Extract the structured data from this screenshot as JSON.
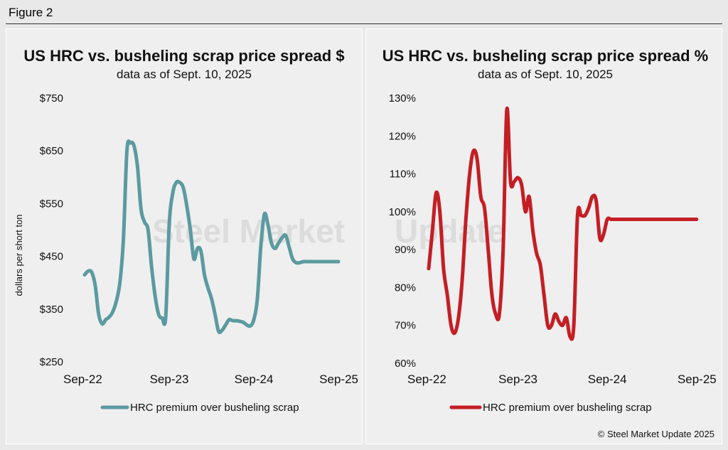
{
  "figure_label": "Figure 2",
  "copyright": "© Steel Market Update 2025",
  "colors": {
    "left_series": "#5b9aa0",
    "right_series": "#c41e24",
    "background": "#e9e9e9"
  },
  "chart_data": [
    {
      "type": "line",
      "title": "US HRC vs. busheling scrap price spread $",
      "subtitle": "data as of Sept. 10, 2025",
      "ylabel": "dollars per short ton",
      "xlabel": "",
      "ylim": [
        250,
        750
      ],
      "y_ticks": [
        250,
        350,
        450,
        550,
        650,
        750
      ],
      "y_tick_labels": [
        "$250",
        "$350",
        "$450",
        "$550",
        "$650",
        "$750"
      ],
      "x_tick_labels": [
        "Sep-22",
        "Sep-23",
        "Sep-24",
        "Sep-25"
      ],
      "x_ticks_months": [
        0,
        12,
        24,
        36
      ],
      "xlim_months": [
        0,
        36.5
      ],
      "legend": "bottom-center",
      "grid": false,
      "series": [
        {
          "name": "HRC premium over busheling scrap",
          "x_months": [
            0,
            0.5,
            1,
            1.5,
            2,
            2.5,
            3,
            3.5,
            4,
            4.5,
            5,
            5.5,
            6,
            6.5,
            7,
            7.5,
            8,
            8.5,
            9,
            9.5,
            10,
            10.5,
            11,
            11.5,
            12,
            12.5,
            13,
            13.5,
            14,
            14.5,
            15,
            15.5,
            16,
            16.5,
            17,
            17.5,
            18,
            18.5,
            19,
            19.5,
            20,
            20.5,
            21,
            21.5,
            22,
            22.5,
            23,
            23.5,
            24,
            24.5,
            25,
            25.5,
            26,
            26.5,
            27,
            27.5,
            28,
            28.5,
            29,
            29.5,
            30,
            30.5,
            31,
            31.5,
            32,
            32.5,
            33,
            33.5,
            34,
            34.5,
            35,
            35.5,
            36
          ],
          "values": [
            415,
            422,
            420,
            395,
            340,
            322,
            330,
            335,
            345,
            365,
            400,
            480,
            650,
            665,
            660,
            620,
            540,
            515,
            500,
            430,
            375,
            340,
            333,
            335,
            510,
            570,
            590,
            590,
            580,
            545,
            500,
            445,
            465,
            460,
            415,
            390,
            370,
            340,
            308,
            310,
            320,
            330,
            328,
            328,
            327,
            325,
            320,
            318,
            330,
            370,
            470,
            530,
            510,
            475,
            465,
            475,
            485,
            490,
            468,
            445,
            438,
            438,
            440,
            440,
            440,
            440,
            440,
            440,
            440,
            440,
            440,
            440,
            440
          ]
        }
      ]
    },
    {
      "type": "line",
      "title": "US HRC vs. busheling scrap price spread %",
      "subtitle": "data as of Sept. 10, 2025",
      "ylabel": "",
      "xlabel": "",
      "ylim": [
        60,
        130
      ],
      "y_ticks": [
        60,
        70,
        80,
        90,
        100,
        110,
        120,
        130
      ],
      "y_tick_labels": [
        "60%",
        "70%",
        "80%",
        "90%",
        "100%",
        "110%",
        "120%",
        "130%"
      ],
      "x_tick_labels": [
        "Sep-22",
        "Sep-23",
        "Sep-24",
        "Sep-25"
      ],
      "x_ticks_months": [
        0,
        12,
        24,
        36
      ],
      "xlim_months": [
        0,
        36.5
      ],
      "legend": "bottom-center",
      "grid": false,
      "series": [
        {
          "name": "HRC premium over busheling scrap",
          "x_months": [
            0,
            0.5,
            1,
            1.5,
            2,
            2.5,
            3,
            3.5,
            4,
            4.5,
            5,
            5.5,
            6,
            6.5,
            7,
            7.5,
            8,
            8.5,
            9,
            9.5,
            10,
            10.5,
            11,
            11.5,
            12,
            12.5,
            13,
            13.5,
            14,
            14.5,
            15,
            15.5,
            16,
            16.5,
            17,
            17.5,
            18,
            18.5,
            19,
            19.5,
            20,
            20.5,
            21,
            21.5,
            22,
            22.5,
            23,
            23.5,
            24,
            24.5,
            25,
            25.5,
            26,
            26.5,
            27,
            27.5,
            28,
            28.5,
            29,
            29.5,
            30,
            30.5,
            31,
            31.5,
            32,
            32.5,
            33,
            33.5,
            34,
            34.5,
            35,
            35.5,
            36
          ],
          "values": [
            85,
            95,
            105,
            100,
            85,
            78,
            70,
            68,
            72,
            82,
            98,
            110,
            116,
            114,
            104,
            101,
            90,
            78,
            73,
            73,
            90,
            127,
            108,
            108,
            109,
            107,
            100,
            104,
            95,
            89,
            86,
            78,
            70,
            70,
            73,
            71,
            70,
            72,
            67,
            70,
            99,
            99,
            99,
            101,
            104,
            103,
            93,
            94,
            98,
            98,
            98,
            98,
            98,
            98,
            98,
            98,
            98,
            98,
            98,
            98,
            98,
            98,
            98,
            98,
            98,
            98,
            98,
            98,
            98,
            98,
            98,
            98,
            98
          ]
        }
      ]
    }
  ]
}
